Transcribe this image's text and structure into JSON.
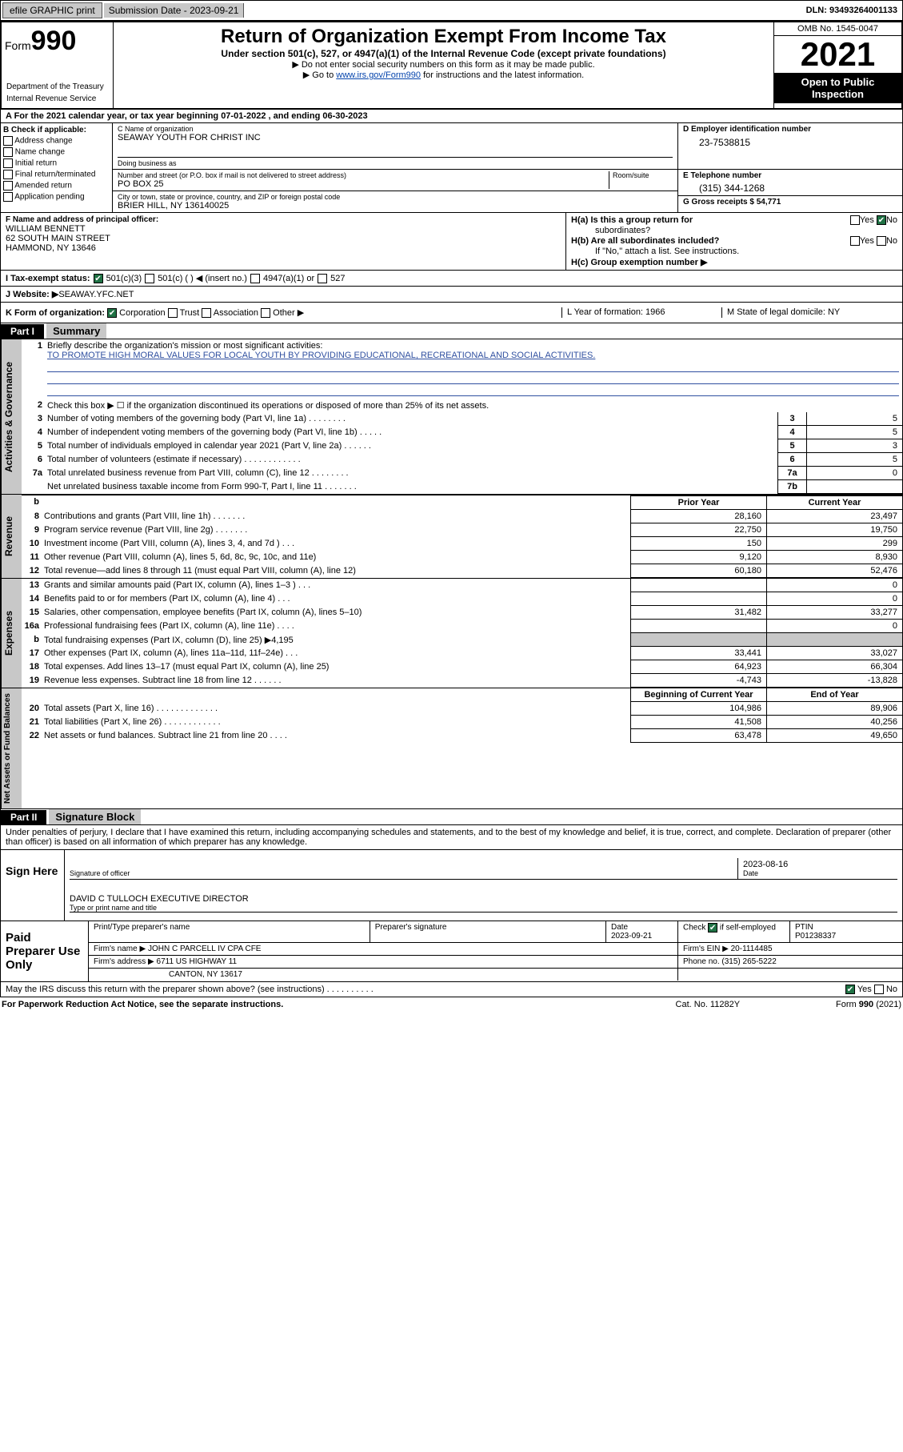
{
  "topbar": {
    "efile": "efile GRAPHIC print",
    "submission_label": "Submission Date - 2023-09-21",
    "dln": "DLN: 93493264001133"
  },
  "header": {
    "form_prefix": "Form",
    "form_number": "990",
    "title": "Return of Organization Exempt From Income Tax",
    "subtitle1": "Under section 501(c), 527, or 4947(a)(1) of the Internal Revenue Code (except private foundations)",
    "subtitle2": "▶ Do not enter social security numbers on this form as it may be made public.",
    "subtitle3_pre": "▶ Go to ",
    "subtitle3_link": "www.irs.gov/Form990",
    "subtitle3_post": " for instructions and the latest information.",
    "omb": "OMB No. 1545-0047",
    "year": "2021",
    "open_public": "Open to Public Inspection",
    "dept": "Department of the Treasury",
    "irs": "Internal Revenue Service"
  },
  "row_a": "A For the 2021 calendar year, or tax year beginning 07-01-2022  , and ending 06-30-2023",
  "section_b": {
    "label": "B Check if applicable:",
    "items": [
      "Address change",
      "Name change",
      "Initial return",
      "Final return/terminated",
      "Amended return",
      "Application pending"
    ]
  },
  "section_c": {
    "name_label": "C Name of organization",
    "name": "SEAWAY YOUTH FOR CHRIST INC",
    "dba_label": "Doing business as",
    "street_label": "Number and street (or P.O. box if mail is not delivered to street address)",
    "room_label": "Room/suite",
    "street": "PO BOX 25",
    "city_label": "City or town, state or province, country, and ZIP or foreign postal code",
    "city": "BRIER HILL, NY  136140025"
  },
  "section_d": {
    "label": "D Employer identification number",
    "value": "23-7538815"
  },
  "section_e": {
    "label": "E Telephone number",
    "value": "(315) 344-1268"
  },
  "section_g": {
    "label": "G Gross receipts $ 54,771"
  },
  "section_f": {
    "label": "F Name and address of principal officer:",
    "line1": "WILLIAM BENNETT",
    "line2": "62 SOUTH MAIN STREET",
    "line3": "HAMMOND, NY  13646"
  },
  "section_h": {
    "ha_label": "H(a)  Is this a group return for",
    "ha_label2": "subordinates?",
    "hb_label": "H(b)  Are all subordinates included?",
    "hb_note": "If \"No,\" attach a list. See instructions.",
    "hc_label": "H(c)  Group exemption number ▶"
  },
  "row_i": {
    "label": "I   Tax-exempt status:",
    "opt1": "501(c)(3)",
    "opt2": "501(c) (   ) ◀ (insert no.)",
    "opt3": "4947(a)(1) or",
    "opt4": "527"
  },
  "row_j": {
    "label": "J   Website: ▶",
    "value": " SEAWAY.YFC.NET"
  },
  "row_k": {
    "label": "K Form of organization:",
    "opts": [
      "Corporation",
      "Trust",
      "Association",
      "Other ▶"
    ],
    "l_label": "L Year of formation: 1966",
    "m_label": "M State of legal domicile: NY"
  },
  "part1": {
    "hdr": "Part I",
    "title": "Summary",
    "vtab1": "Activities & Governance",
    "vtab2": "Revenue",
    "vtab3": "Expenses",
    "vtab4": "Net Assets or Fund Balances",
    "q1": "Briefly describe the organization's mission or most significant activities:",
    "q1_ans": "TO PROMOTE HIGH MORAL VALUES FOR LOCAL YOUTH BY PROVIDING EDUCATIONAL, RECREATIONAL AND SOCIAL ACTIVITIES.",
    "q2": "Check this box ▶ ☐  if the organization discontinued its operations or disposed of more than 25% of its net assets.",
    "rows_gov": [
      {
        "n": "3",
        "t": "Number of voting members of the governing body (Part VI, line 1a)  .   .   .   .   .   .   .   .",
        "k": "3",
        "v": "5"
      },
      {
        "n": "4",
        "t": "Number of independent voting members of the governing body (Part VI, line 1b)  .   .   .   .   .",
        "k": "4",
        "v": "5"
      },
      {
        "n": "5",
        "t": "Total number of individuals employed in calendar year 2021 (Part V, line 2a)  .   .   .   .   .   .",
        "k": "5",
        "v": "3"
      },
      {
        "n": "6",
        "t": "Total number of volunteers (estimate if necessary)  .   .   .   .   .   .   .   .   .   .   .   .",
        "k": "6",
        "v": "5"
      },
      {
        "n": "7a",
        "t": "Total unrelated business revenue from Part VIII, column (C), line 12  .   .   .   .   .   .   .   .",
        "k": "7a",
        "v": "0"
      },
      {
        "n": "",
        "t": "Net unrelated business taxable income from Form 990-T, Part I, line 11  .   .   .   .   .   .   .",
        "k": "7b",
        "v": ""
      }
    ],
    "col_prior": "Prior Year",
    "col_current": "Current Year",
    "rows_rev": [
      {
        "n": "8",
        "t": "Contributions and grants (Part VIII, line 1h)  .   .   .   .   .   .   .",
        "p": "28,160",
        "c": "23,497"
      },
      {
        "n": "9",
        "t": "Program service revenue (Part VIII, line 2g)  .   .   .   .   .   .   .",
        "p": "22,750",
        "c": "19,750"
      },
      {
        "n": "10",
        "t": "Investment income (Part VIII, column (A), lines 3, 4, and 7d )  .   .   .",
        "p": "150",
        "c": "299"
      },
      {
        "n": "11",
        "t": "Other revenue (Part VIII, column (A), lines 5, 6d, 8c, 9c, 10c, and 11e)",
        "p": "9,120",
        "c": "8,930"
      },
      {
        "n": "12",
        "t": "Total revenue—add lines 8 through 11 (must equal Part VIII, column (A), line 12)",
        "p": "60,180",
        "c": "52,476"
      }
    ],
    "rows_exp": [
      {
        "n": "13",
        "t": "Grants and similar amounts paid (Part IX, column (A), lines 1–3 )  .   .   .",
        "p": "",
        "c": "0"
      },
      {
        "n": "14",
        "t": "Benefits paid to or for members (Part IX, column (A), line 4)  .   .   .",
        "p": "",
        "c": "0"
      },
      {
        "n": "15",
        "t": "Salaries, other compensation, employee benefits (Part IX, column (A), lines 5–10)",
        "p": "31,482",
        "c": "33,277"
      },
      {
        "n": "16a",
        "t": "Professional fundraising fees (Part IX, column (A), line 11e)  .   .   .   .",
        "p": "",
        "c": "0"
      },
      {
        "n": "b",
        "t": "Total fundraising expenses (Part IX, column (D), line 25) ▶4,195",
        "p": "SHADE",
        "c": "SHADE"
      },
      {
        "n": "17",
        "t": "Other expenses (Part IX, column (A), lines 11a–11d, 11f–24e)  .   .   .",
        "p": "33,441",
        "c": "33,027"
      },
      {
        "n": "18",
        "t": "Total expenses. Add lines 13–17 (must equal Part IX, column (A), line 25)",
        "p": "64,923",
        "c": "66,304"
      },
      {
        "n": "19",
        "t": "Revenue less expenses. Subtract line 18 from line 12 .   .   .   .   .   .",
        "p": "-4,743",
        "c": "-13,828"
      }
    ],
    "col_begin": "Beginning of Current Year",
    "col_end": "End of Year",
    "rows_net": [
      {
        "n": "20",
        "t": "Total assets (Part X, line 16)  .   .   .   .   .   .   .   .   .   .   .   .   .",
        "p": "104,986",
        "c": "89,906"
      },
      {
        "n": "21",
        "t": "Total liabilities (Part X, line 26)  .   .   .   .   .   .   .   .   .   .   .   .",
        "p": "41,508",
        "c": "40,256"
      },
      {
        "n": "22",
        "t": "Net assets or fund balances. Subtract line 21 from line 20  .   .   .   .",
        "p": "63,478",
        "c": "49,650"
      }
    ]
  },
  "part2": {
    "hdr": "Part II",
    "title": "Signature Block",
    "declaration": "Under penalties of perjury, I declare that I have examined this return, including accompanying schedules and statements, and to the best of my knowledge and belief, it is true, correct, and complete. Declaration of preparer (other than officer) is based on all information of which preparer has any knowledge.",
    "sign_here": "Sign Here",
    "sig_officer": "Signature of officer",
    "sig_date": "2023-08-16",
    "date_lbl": "Date",
    "name_title": "DAVID C TULLOCH  EXECUTIVE DIRECTOR",
    "name_lbl": "Type or print name and title",
    "paid_label": "Paid Preparer Use Only",
    "prep_name_lbl": "Print/Type preparer's name",
    "prep_sig_lbl": "Preparer's signature",
    "prep_date_lbl": "Date",
    "prep_date": "2023-09-21",
    "self_emp": "Check ☑ if self-employed",
    "ptin_lbl": "PTIN",
    "ptin": "P01238337",
    "firm_name_lbl": "Firm's name    ▶",
    "firm_name": "JOHN C PARCELL IV CPA CFE",
    "firm_ein_lbl": "Firm's EIN ▶",
    "firm_ein": "20-1114485",
    "firm_addr_lbl": "Firm's address ▶",
    "firm_addr1": "6711 US HIGHWAY 11",
    "firm_addr2": "CANTON, NY  13617",
    "phone_lbl": "Phone no.",
    "phone": "(315) 265-5222",
    "may_discuss": "May the IRS discuss this return with the preparer shown above? (see instructions)  .   .   .   .   .   .   .   .   .   ."
  },
  "footer": {
    "l": "For Paperwork Reduction Act Notice, see the separate instructions.",
    "m": "Cat. No. 11282Y",
    "r": "Form 990 (2021)"
  },
  "yn": {
    "yes": "Yes",
    "no": "No"
  }
}
